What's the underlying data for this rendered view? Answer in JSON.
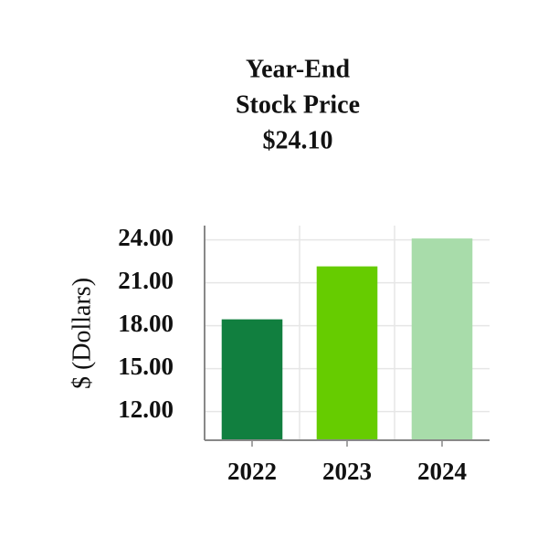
{
  "chart_data": {
    "type": "bar",
    "title": [
      "Year-End",
      "Stock Price"
    ],
    "subtitle": "$24.10",
    "y_label": "$ (Dollars)",
    "categories": [
      "2022",
      "2023",
      "2024"
    ],
    "values": [
      18.45,
      22.15,
      24.1
    ],
    "colors": [
      "#117f3f",
      "#66cc00",
      "#a8dcaa"
    ],
    "ylim": [
      10,
      25
    ],
    "yticks": [
      {
        "value": 12,
        "label": "12.00"
      },
      {
        "value": 15,
        "label": "15.00"
      },
      {
        "value": 18,
        "label": "18.00"
      },
      {
        "value": 21,
        "label": "21.00"
      },
      {
        "value": 24,
        "label": "24.00"
      }
    ],
    "grid": true
  }
}
